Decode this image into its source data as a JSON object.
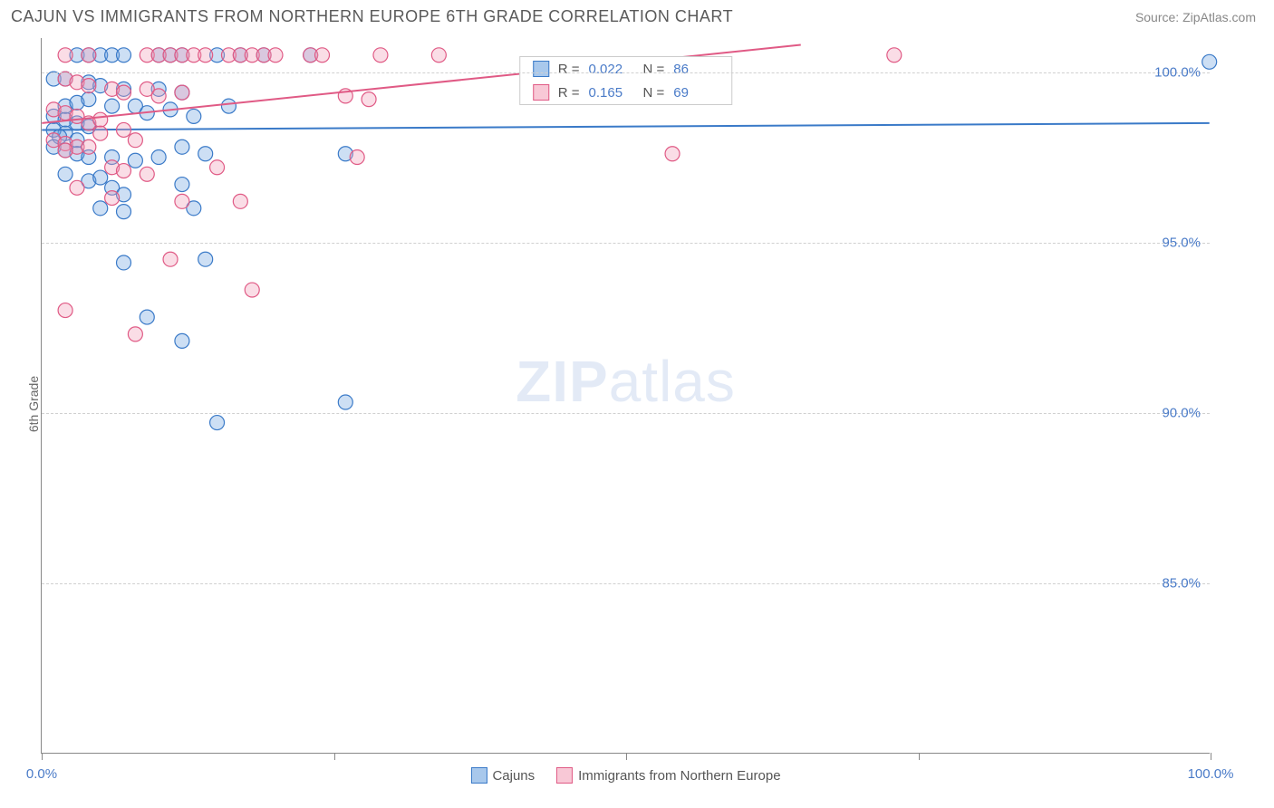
{
  "header": {
    "title": "CAJUN VS IMMIGRANTS FROM NORTHERN EUROPE 6TH GRADE CORRELATION CHART",
    "source": "Source: ZipAtlas.com"
  },
  "ylabel": "6th Grade",
  "watermark": {
    "zip": "ZIP",
    "atlas": "atlas"
  },
  "chart": {
    "type": "scatter",
    "xlim": [
      0,
      100
    ],
    "ylim": [
      80,
      101
    ],
    "xticks": [
      0,
      25,
      50,
      75,
      100
    ],
    "xtick_labels": [
      "0.0%",
      "",
      "",
      "",
      "100.0%"
    ],
    "yticks": [
      85,
      90,
      95,
      100
    ],
    "ytick_labels": [
      "85.0%",
      "90.0%",
      "95.0%",
      "100.0%"
    ],
    "grid_h": [
      85,
      90,
      95,
      100
    ],
    "grid_color": "#d0d0d0",
    "background_color": "#ffffff",
    "marker_radius": 8,
    "marker_opacity": 0.35,
    "line_width": 2,
    "series": [
      {
        "name": "Cajuns",
        "fill": "#6fa3e0",
        "stroke": "#3a7ac8",
        "R": "0.022",
        "N": "86",
        "trend": {
          "x1": 0,
          "y1": 98.3,
          "x2": 100,
          "y2": 98.5
        },
        "points": [
          [
            3,
            100.5
          ],
          [
            4,
            100.5
          ],
          [
            5,
            100.5
          ],
          [
            6,
            100.5
          ],
          [
            7,
            100.5
          ],
          [
            10,
            100.5
          ],
          [
            11,
            100.5
          ],
          [
            12,
            100.5
          ],
          [
            15,
            100.5
          ],
          [
            17,
            100.5
          ],
          [
            19,
            100.5
          ],
          [
            23,
            100.5
          ],
          [
            1,
            99.8
          ],
          [
            2,
            99.8
          ],
          [
            4,
            99.7
          ],
          [
            5,
            99.6
          ],
          [
            7,
            99.5
          ],
          [
            10,
            99.5
          ],
          [
            12,
            99.4
          ],
          [
            1,
            98.7
          ],
          [
            2,
            98.6
          ],
          [
            3,
            98.5
          ],
          [
            4,
            98.4
          ],
          [
            2,
            98.2
          ],
          [
            3,
            98.0
          ],
          [
            1,
            98.3
          ],
          [
            1.5,
            98.1
          ],
          [
            2,
            99.0
          ],
          [
            3,
            99.1
          ],
          [
            4,
            99.2
          ],
          [
            6,
            99.0
          ],
          [
            8,
            99.0
          ],
          [
            9,
            98.8
          ],
          [
            11,
            98.9
          ],
          [
            13,
            98.7
          ],
          [
            16,
            99.0
          ],
          [
            1,
            97.8
          ],
          [
            2,
            97.7
          ],
          [
            3,
            97.6
          ],
          [
            4,
            97.5
          ],
          [
            6,
            97.5
          ],
          [
            8,
            97.4
          ],
          [
            10,
            97.5
          ],
          [
            12,
            97.8
          ],
          [
            14,
            97.6
          ],
          [
            26,
            97.6
          ],
          [
            2,
            97.0
          ],
          [
            4,
            96.8
          ],
          [
            5,
            96.9
          ],
          [
            6,
            96.6
          ],
          [
            12,
            96.7
          ],
          [
            7,
            96.4
          ],
          [
            5,
            96.0
          ],
          [
            7,
            95.9
          ],
          [
            13,
            96.0
          ],
          [
            7,
            94.4
          ],
          [
            14,
            94.5
          ],
          [
            9,
            92.8
          ],
          [
            12,
            92.1
          ],
          [
            15,
            89.7
          ],
          [
            26,
            90.3
          ],
          [
            100,
            100.3
          ]
        ]
      },
      {
        "name": "Immigrants from Northern Europe",
        "fill": "#f29db8",
        "stroke": "#e05a85",
        "R": "0.165",
        "N": "69",
        "trend": {
          "x1": 0,
          "y1": 98.5,
          "x2": 65,
          "y2": 100.8
        },
        "points": [
          [
            2,
            100.5
          ],
          [
            4,
            100.5
          ],
          [
            9,
            100.5
          ],
          [
            10,
            100.5
          ],
          [
            11,
            100.5
          ],
          [
            12,
            100.5
          ],
          [
            13,
            100.5
          ],
          [
            14,
            100.5
          ],
          [
            16,
            100.5
          ],
          [
            17,
            100.5
          ],
          [
            18,
            100.5
          ],
          [
            19,
            100.5
          ],
          [
            20,
            100.5
          ],
          [
            23,
            100.5
          ],
          [
            24,
            100.5
          ],
          [
            29,
            100.5
          ],
          [
            34,
            100.5
          ],
          [
            73,
            100.5
          ],
          [
            2,
            99.8
          ],
          [
            3,
            99.7
          ],
          [
            4,
            99.6
          ],
          [
            6,
            99.5
          ],
          [
            7,
            99.4
          ],
          [
            9,
            99.5
          ],
          [
            10,
            99.3
          ],
          [
            12,
            99.4
          ],
          [
            26,
            99.3
          ],
          [
            28,
            99.2
          ],
          [
            1,
            98.9
          ],
          [
            2,
            98.8
          ],
          [
            3,
            98.7
          ],
          [
            4,
            98.5
          ],
          [
            5,
            98.6
          ],
          [
            5,
            98.2
          ],
          [
            7,
            98.3
          ],
          [
            8,
            98.0
          ],
          [
            1,
            98.0
          ],
          [
            2,
            97.9
          ],
          [
            3,
            97.8
          ],
          [
            2,
            97.7
          ],
          [
            4,
            97.8
          ],
          [
            6,
            97.2
          ],
          [
            7,
            97.1
          ],
          [
            9,
            97.0
          ],
          [
            15,
            97.2
          ],
          [
            27,
            97.5
          ],
          [
            54,
            97.6
          ],
          [
            3,
            96.6
          ],
          [
            6,
            96.3
          ],
          [
            12,
            96.2
          ],
          [
            17,
            96.2
          ],
          [
            11,
            94.5
          ],
          [
            18,
            93.6
          ],
          [
            2,
            93.0
          ],
          [
            8,
            92.3
          ]
        ]
      }
    ]
  },
  "bottom_legend": [
    {
      "swatch_fill": "#a8c8ec",
      "swatch_stroke": "#3a7ac8",
      "label": "Cajuns"
    },
    {
      "swatch_fill": "#f8c8d6",
      "swatch_stroke": "#e05a85",
      "label": "Immigrants from Northern Europe"
    }
  ],
  "corr_box": [
    {
      "swatch_fill": "#a8c8ec",
      "swatch_stroke": "#3a7ac8",
      "r_label": "R =",
      "r_val": "0.022",
      "n_label": "N =",
      "n_val": "86"
    },
    {
      "swatch_fill": "#f8c8d6",
      "swatch_stroke": "#e05a85",
      "r_label": "R =",
      "r_val": "0.165",
      "n_label": "N =",
      "n_val": "69"
    }
  ]
}
